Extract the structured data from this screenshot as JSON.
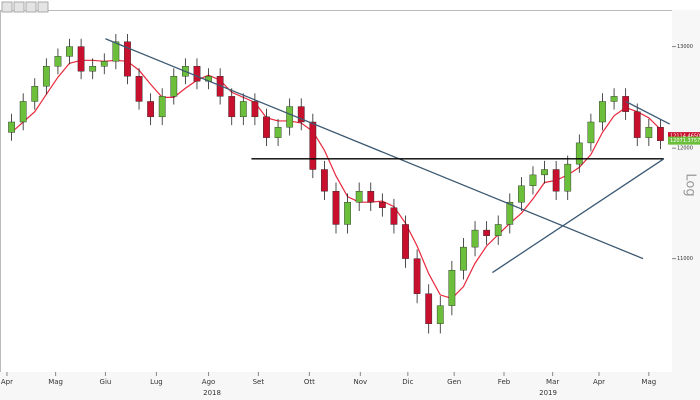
{
  "chart_data": {
    "type": "candlestick",
    "log_scale": true,
    "grid": false,
    "up_color": "#6cbf3a",
    "down_color": "#c8102e",
    "x": [
      1,
      2,
      3,
      4,
      5,
      6,
      7,
      8,
      9,
      10,
      11,
      12,
      13,
      14,
      15,
      16,
      17,
      18,
      19,
      20,
      21,
      22,
      23,
      24,
      25,
      26,
      27,
      28,
      29,
      30,
      31,
      32,
      33,
      34,
      35,
      36,
      37,
      38,
      39,
      40,
      41,
      42,
      43,
      44,
      45,
      46,
      47,
      48,
      49,
      50,
      51,
      52,
      53,
      54,
      55,
      56,
      57
    ],
    "open": [
      12150,
      12250,
      12450,
      12600,
      12800,
      12900,
      13000,
      12750,
      12800,
      12850,
      13050,
      12700,
      12450,
      12300,
      12500,
      12700,
      12800,
      12650,
      12700,
      12500,
      12300,
      12450,
      12300,
      12100,
      12200,
      12400,
      12250,
      11800,
      11600,
      11300,
      11500,
      11600,
      11500,
      11450,
      11300,
      11000,
      10700,
      10450,
      10600,
      10900,
      11100,
      11250,
      11200,
      11300,
      11500,
      11650,
      11750,
      11800,
      11600,
      11850,
      12050,
      12250,
      12450,
      12500,
      12350,
      12100,
      12200
    ],
    "high": [
      12330,
      12530,
      12680,
      12880,
      12980,
      13080,
      13080,
      12880,
      12930,
      13130,
      13130,
      12780,
      12530,
      12580,
      12780,
      12880,
      12880,
      12780,
      12780,
      12580,
      12530,
      12530,
      12380,
      12280,
      12480,
      12480,
      12330,
      11880,
      11680,
      11580,
      11680,
      11680,
      11580,
      11530,
      11380,
      11080,
      10780,
      10680,
      10980,
      11180,
      11330,
      11330,
      11380,
      11580,
      11730,
      11830,
      11880,
      11880,
      11930,
      12130,
      12330,
      12530,
      12580,
      12580,
      12430,
      12280,
      12280
    ],
    "low": [
      12070,
      12170,
      12370,
      12520,
      12720,
      12820,
      12670,
      12670,
      12720,
      12770,
      12620,
      12370,
      12220,
      12220,
      12420,
      12620,
      12570,
      12570,
      12420,
      12220,
      12220,
      12220,
      12020,
      12020,
      12120,
      12170,
      11720,
      11520,
      11220,
      11220,
      11420,
      11420,
      11370,
      11220,
      10920,
      10620,
      10370,
      10370,
      10520,
      10820,
      11020,
      11120,
      11120,
      11220,
      11420,
      11570,
      11670,
      11520,
      11520,
      11770,
      11970,
      12170,
      12370,
      12270,
      12020,
      12020,
      11991
    ],
    "close": [
      12250,
      12450,
      12600,
      12800,
      12900,
      13000,
      12750,
      12800,
      12850,
      13050,
      12700,
      12450,
      12300,
      12500,
      12700,
      12800,
      12650,
      12700,
      12500,
      12300,
      12450,
      12300,
      12100,
      12200,
      12400,
      12250,
      11800,
      11600,
      11300,
      11500,
      11600,
      11500,
      11450,
      11300,
      11000,
      10700,
      10450,
      10600,
      10900,
      11100,
      11250,
      11200,
      11300,
      11500,
      11650,
      11750,
      11800,
      11600,
      11850,
      12050,
      12250,
      12450,
      12500,
      12350,
      12100,
      12200,
      12071
    ],
    "overlays": [
      {
        "color": "#e8283c",
        "values": [
          12150,
          12250,
          12350,
          12520,
          12690,
          12830,
          12860,
          12860,
          12850,
          12860,
          12850,
          12760,
          12620,
          12490,
          12490,
          12580,
          12660,
          12710,
          12660,
          12540,
          12490,
          12440,
          12290,
          12260,
          12260,
          12240,
          12160,
          11980,
          11740,
          11550,
          11500,
          11500,
          11510,
          11460,
          11310,
          11110,
          10870,
          10690,
          10660,
          10760,
          10960,
          11110,
          11210,
          11310,
          11400,
          11530,
          11680,
          11700,
          11750,
          11820,
          11940,
          12150,
          12310,
          12390,
          12350,
          12290,
          12180
        ]
      }
    ],
    "trendlines": [
      {
        "color": "#3d5a73",
        "x": [
          9.1,
          55.5
        ],
        "y": [
          13080,
          11000
        ]
      },
      {
        "color": "#000000",
        "x": [
          21.7,
          57.3
        ],
        "y": [
          11900,
          11900
        ]
      },
      {
        "color": "#3d5a73",
        "x": [
          42.5,
          57.3
        ],
        "y": [
          10880,
          11900
        ]
      },
      {
        "color": "#3d5a73",
        "x": [
          54,
          57.8
        ],
        "y": [
          12450,
          12230
        ]
      }
    ],
    "price_labels": [
      {
        "value": 12114.465,
        "label": "12114.4650",
        "color": "#c8102e"
      },
      {
        "value": 12071.3757,
        "label": "12071.3757",
        "color": "#6cbf3a"
      }
    ],
    "xlim": [
      0,
      58
    ],
    "ylim": [
      10060,
      13380
    ],
    "yticks": [
      11000,
      12000,
      13000
    ],
    "y_axis_label": "Log",
    "xticks": [
      {
        "value": 0.6,
        "label": "Apr"
      },
      {
        "value": 4.8,
        "label": "Mag"
      },
      {
        "value": 9.1,
        "label": "Giu"
      },
      {
        "value": 13.5,
        "label": "Lug"
      },
      {
        "value": 18,
        "label": "Ago"
      },
      {
        "value": 22.3,
        "label": "Set"
      },
      {
        "value": 26.7,
        "label": "Ott"
      },
      {
        "value": 31.1,
        "label": "Nov"
      },
      {
        "value": 35.2,
        "label": "Dic"
      },
      {
        "value": 39.2,
        "label": "Gen"
      },
      {
        "value": 43.5,
        "label": "Feb"
      },
      {
        "value": 47.7,
        "label": "Mar"
      },
      {
        "value": 51.7,
        "label": "Apr"
      },
      {
        "value": 56,
        "label": "Mag"
      }
    ],
    "year_labels": [
      {
        "value": 18.3,
        "label": "2018"
      },
      {
        "value": 47.3,
        "label": "2019"
      }
    ]
  }
}
